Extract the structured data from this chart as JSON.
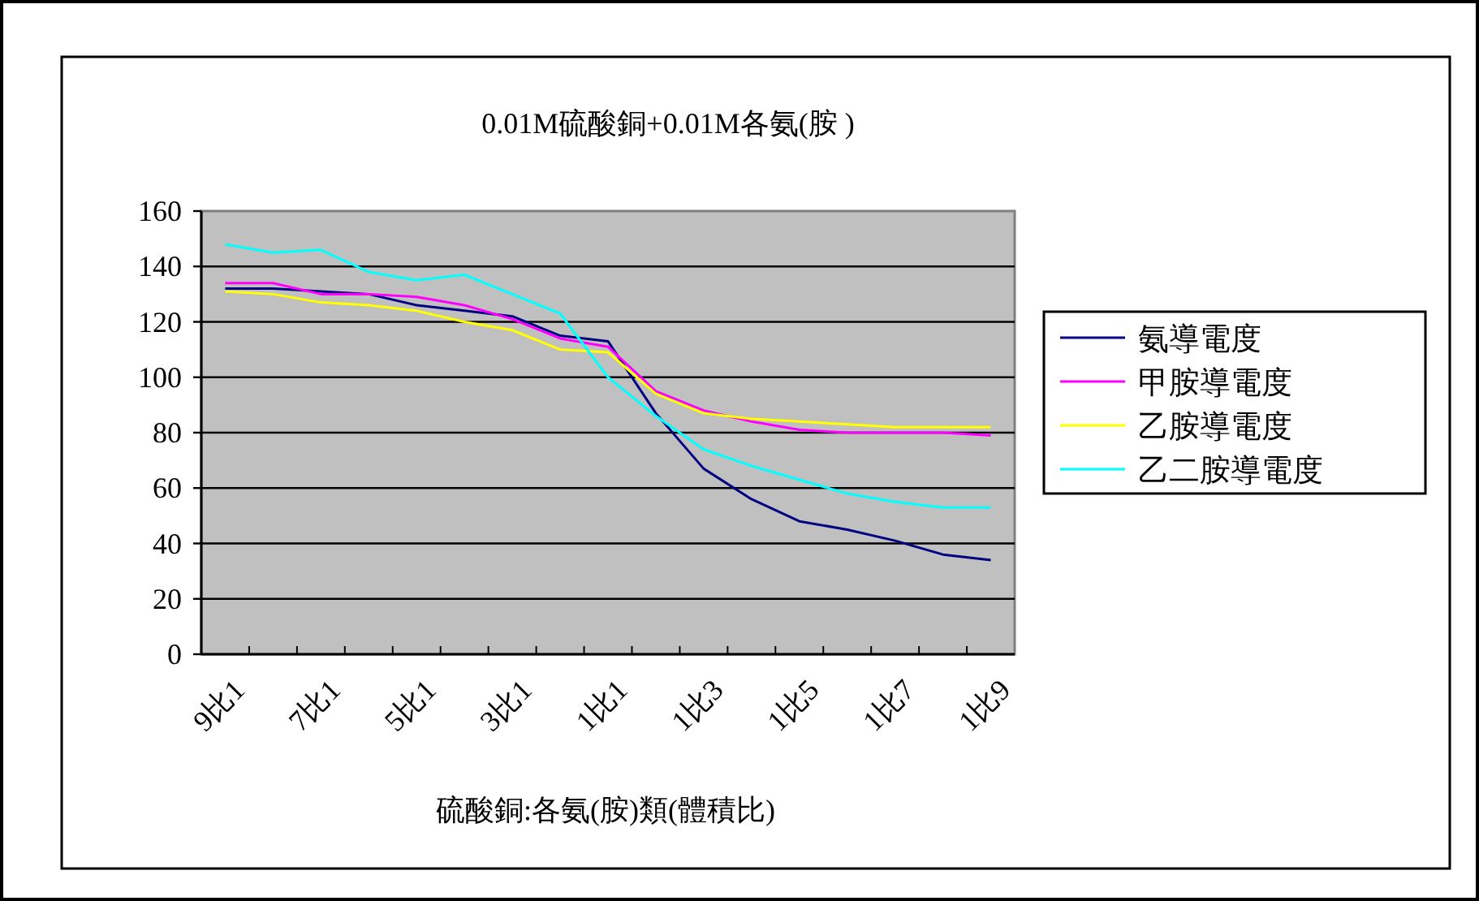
{
  "chart_data": {
    "type": "line",
    "title": "0.01M硫酸銅+0.01M各氨(胺 )",
    "xlabel": "硫酸銅:各氨(胺)類(體積比)",
    "categories": [
      "9比1",
      null,
      "7比1",
      null,
      "5比1",
      null,
      "3比1",
      null,
      "1比1",
      null,
      "1比3",
      null,
      "1比5",
      null,
      "1比7",
      null,
      "1比9"
    ],
    "series": [
      {
        "name": "氨導電度",
        "color": "#000080",
        "values": [
          132,
          132,
          131,
          130,
          126,
          124,
          122,
          115,
          113,
          87,
          67,
          56,
          48,
          45,
          41,
          36,
          34
        ]
      },
      {
        "name": "甲胺導電度",
        "color": "#ff00ff",
        "values": [
          134,
          134,
          130,
          130,
          129,
          126,
          121,
          114,
          111,
          95,
          88,
          84,
          81,
          80,
          80,
          80,
          79
        ]
      },
      {
        "name": "乙胺導電度",
        "color": "#ffff00",
        "values": [
          131,
          130,
          127,
          126,
          124,
          120,
          117,
          110,
          109,
          94,
          87,
          85,
          84,
          83,
          82,
          82,
          82
        ]
      },
      {
        "name": "乙二胺導電度",
        "color": "#00ffff",
        "values": [
          148,
          145,
          146,
          138,
          135,
          137,
          130,
          123,
          100,
          86,
          74,
          68,
          63,
          58,
          55,
          53,
          53
        ]
      }
    ],
    "ylim": [
      0,
      160
    ],
    "yticks": [
      0,
      20,
      40,
      60,
      80,
      100,
      120,
      140,
      160
    ],
    "grid": "y",
    "legend": "right"
  }
}
